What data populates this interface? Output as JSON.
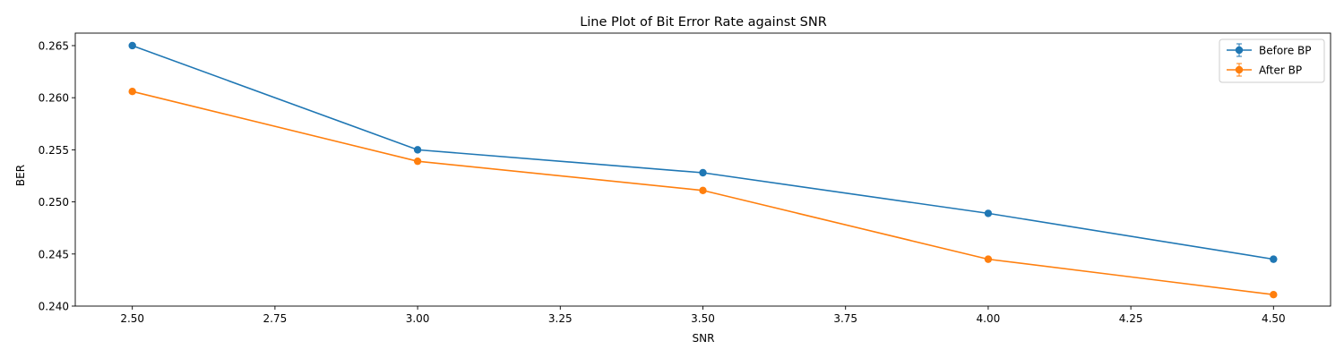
{
  "chart_data": {
    "type": "line",
    "title": "Line Plot of Bit Error Rate against SNR",
    "xlabel": "SNR",
    "ylabel": "BER",
    "xlim": [
      2.4,
      4.6
    ],
    "ylim": [
      0.24,
      0.2662
    ],
    "x_ticks": [
      2.5,
      2.75,
      3.0,
      3.25,
      3.5,
      3.75,
      4.0,
      4.25,
      4.5
    ],
    "x_tick_labels": [
      "2.50",
      "2.75",
      "3.00",
      "3.25",
      "3.50",
      "3.75",
      "4.00",
      "4.25",
      "4.50"
    ],
    "y_ticks": [
      0.24,
      0.245,
      0.25,
      0.255,
      0.26,
      0.265
    ],
    "y_tick_labels": [
      "0.240",
      "0.245",
      "0.250",
      "0.255",
      "0.260",
      "0.265"
    ],
    "grid": false,
    "legend_position": "top-right",
    "x": [
      2.5,
      3.0,
      3.5,
      4.0,
      4.5
    ],
    "series": [
      {
        "name": "Before BP",
        "color": "#1f77b4",
        "marker": "circle",
        "error_bars": true,
        "values": [
          0.265,
          0.255,
          0.2528,
          0.2489,
          0.2445
        ]
      },
      {
        "name": "After BP",
        "color": "#ff7f0e",
        "marker": "circle",
        "error_bars": true,
        "values": [
          0.2606,
          0.2539,
          0.2511,
          0.2445,
          0.2411
        ]
      }
    ]
  }
}
